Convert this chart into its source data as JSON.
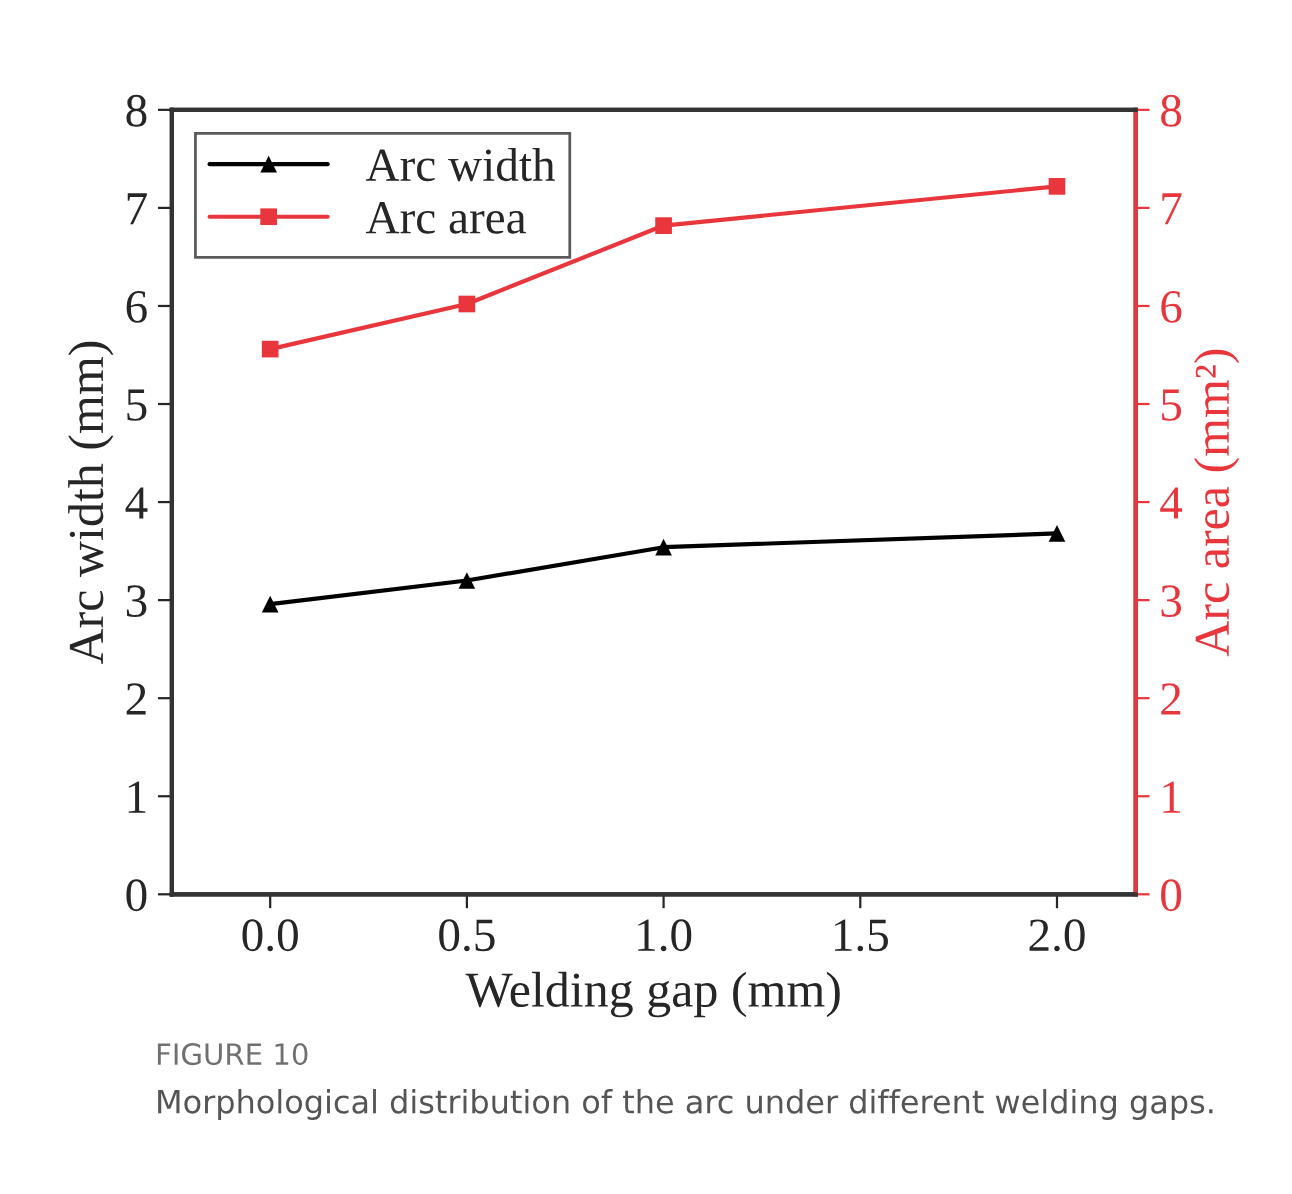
{
  "chart_data": {
    "type": "line",
    "xlabel": "Welding gap (mm)",
    "ylabel": "Arc width (mm)",
    "y2label": "Arc area (mm²)",
    "x": [
      0.0,
      0.5,
      1.0,
      2.0
    ],
    "series": [
      {
        "name": "Arc width",
        "color": "#000000",
        "values": [
          2.96,
          3.2,
          3.54,
          3.68
        ],
        "marker": "triangle"
      },
      {
        "name": "Arc area",
        "color": "#e8363c",
        "values": [
          5.56,
          6.02,
          6.82,
          7.22
        ],
        "marker": "square",
        "axis": "y2"
      }
    ],
    "xlim": [
      -0.25,
      2.2
    ],
    "xticks": [
      {
        "value": 0,
        "label": "0.0"
      },
      0.5,
      {
        "value": 1,
        "label": "1.0"
      },
      1.5,
      {
        "value": 2,
        "label": "2.0"
      }
    ],
    "ylim": [
      0,
      8
    ],
    "yticks": [
      0,
      1,
      2,
      3,
      4,
      5,
      6,
      7,
      8
    ],
    "y2lim": [
      0,
      8
    ],
    "y2ticks": [
      0,
      1,
      2,
      3,
      4,
      5,
      6,
      7,
      8
    ],
    "grid": false,
    "legend": "top left",
    "line_style": "solid",
    "annotations": [
      "FIGURE 10",
      "Morphological distribution of the arc under different welding gaps."
    ]
  }
}
